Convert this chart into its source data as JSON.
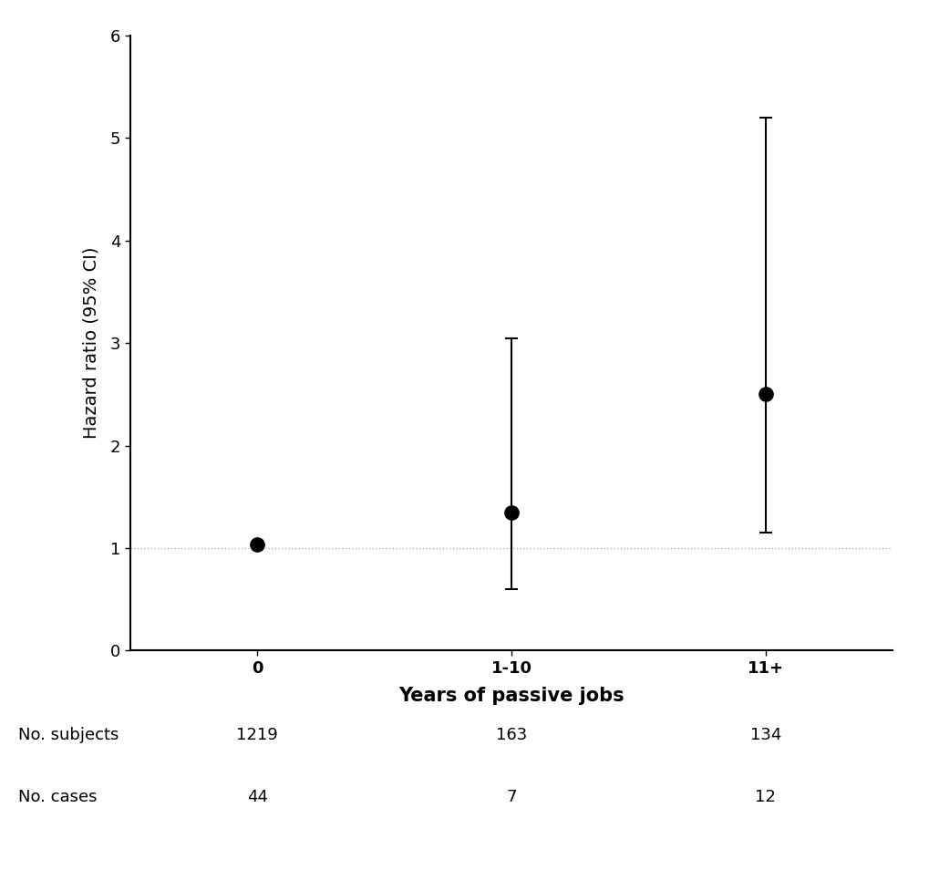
{
  "categories": [
    "0",
    "1-10",
    "11+"
  ],
  "x_positions": [
    0,
    1,
    2
  ],
  "hr_values": [
    1.03,
    1.35,
    2.5
  ],
  "ci_lower": [
    1.03,
    0.6,
    1.15
  ],
  "ci_upper": [
    1.03,
    3.05,
    5.2
  ],
  "ref_line": 1.0,
  "ylim": [
    0,
    6
  ],
  "yticks": [
    0,
    1,
    2,
    3,
    4,
    5,
    6
  ],
  "xlabel": "Years of passive jobs",
  "ylabel": "Hazard ratio (95% CI)",
  "marker_size": 11,
  "marker_color": "#000000",
  "ref_line_color": "#b0b0b0",
  "ref_line_style": ":",
  "table_rows": [
    "No. subjects",
    "No. cases"
  ],
  "table_data": [
    [
      "1219",
      "163",
      "134"
    ],
    [
      "44",
      "7",
      "12"
    ]
  ],
  "background_color": "#ffffff",
  "xlabel_fontsize": 15,
  "ylabel_fontsize": 14,
  "tick_fontsize": 13,
  "table_fontsize": 13,
  "cap_size": 5,
  "elinewidth": 1.5,
  "capthick": 1.5
}
